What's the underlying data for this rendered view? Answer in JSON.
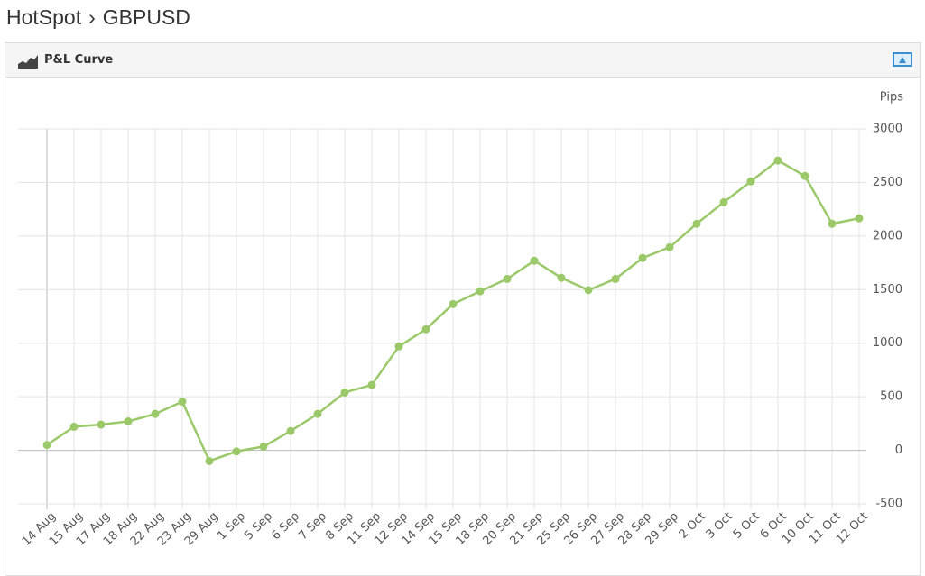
{
  "header": {
    "crumbs": [
      "HotSpot",
      "GBPUSD"
    ],
    "separator": "›"
  },
  "panel": {
    "title": "P&L Curve"
  },
  "chart_data": {
    "type": "line",
    "y_label": "Pips",
    "categories": [
      "14 Aug",
      "15 Aug",
      "17 Aug",
      "18 Aug",
      "22 Aug",
      "23 Aug",
      "29 Aug",
      "1 Sep",
      "5 Sep",
      "6 Sep",
      "7 Sep",
      "8 Sep",
      "11 Sep",
      "12 Sep",
      "14 Sep",
      "15 Sep",
      "18 Sep",
      "20 Sep",
      "21 Sep",
      "25 Sep",
      "26 Sep",
      "27 Sep",
      "28 Sep",
      "29 Sep",
      "2 Oct",
      "3 Oct",
      "5 Oct",
      "6 Oct",
      "10 Oct",
      "11 Oct",
      "12 Oct"
    ],
    "series": [
      {
        "name": "P&L",
        "color": "#9bc96a",
        "values": [
          50,
          220,
          240,
          270,
          340,
          455,
          -100,
          -10,
          35,
          180,
          340,
          540,
          610,
          970,
          1130,
          1365,
          1485,
          1600,
          1770,
          1610,
          1495,
          1600,
          1795,
          1895,
          2115,
          2315,
          2510,
          2705,
          2560,
          2115,
          2165
        ]
      }
    ],
    "ylim": [
      -500,
      3000
    ],
    "yticks": [
      -500,
      0,
      500,
      1000,
      1500,
      2000,
      2500,
      3000
    ],
    "grid": true
  }
}
